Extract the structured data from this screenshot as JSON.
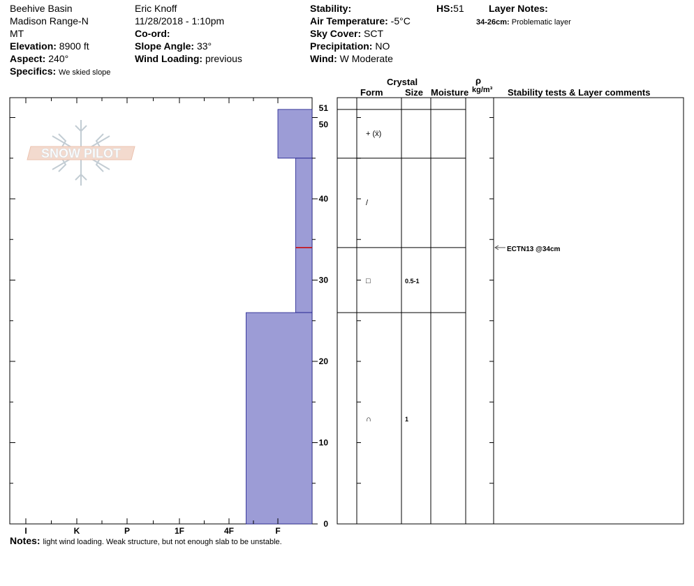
{
  "header": {
    "col1": {
      "location": "Beehive Basin",
      "range": "Madison Range-N",
      "state": "MT",
      "elevation_label": "Elevation:",
      "elevation_value": "8900 ft",
      "aspect_label": "Aspect:",
      "aspect_value": "240°",
      "specifics_label": "Specifics:",
      "specifics_value": "We skied slope"
    },
    "col2": {
      "observer": "Eric Knoff",
      "datetime": "11/28/2018 - 1:10pm",
      "coord_label": "Co-ord:",
      "slope_label": "Slope Angle:",
      "slope_value": "33°",
      "wind_loading_label": "Wind Loading:",
      "wind_loading_value": "previous"
    },
    "col3": {
      "stability_label": "Stability:",
      "air_temp_label": "Air Temperature:",
      "air_temp_value": "-5°C",
      "sky_label": "Sky Cover:",
      "sky_value": "SCT",
      "precip_label": "Precipitation:",
      "precip_value": "NO",
      "wind_label": "Wind:",
      "wind_value": "W Moderate"
    },
    "hs_label": "HS:",
    "hs_value": "51",
    "layer_notes_label": "Layer Notes:",
    "layer_note_range": "34-26cm:",
    "layer_note_text": "Problematic layer"
  },
  "logo": {
    "text": "SNOW PILOT"
  },
  "table_headers": {
    "crystal": "Crystal",
    "form": "Form",
    "size": "Size",
    "moisture": "Moisture",
    "rho": "ρ",
    "density_unit": "kg/m³",
    "stability": "Stability tests & Layer comments"
  },
  "notes": {
    "label": "Notes:",
    "text": "light wind loading. Weak structure, but not enough slab to be unstable."
  },
  "stability_test": {
    "text": "ECTN13 @34cm",
    "depth": 34
  },
  "colors": {
    "layer_fill": "#9c9cd6",
    "layer_stroke": "#1a1a8a",
    "marker": "#cc0000"
  },
  "chart_data": {
    "type": "bar",
    "ylabel": "",
    "xlabel": "",
    "ylim": [
      0,
      51
    ],
    "hardness_categories": [
      "I",
      "K",
      "P",
      "1F",
      "4F",
      "F"
    ],
    "height_ticks": [
      0,
      10,
      20,
      30,
      40,
      50,
      51
    ],
    "layers": [
      {
        "top": 51,
        "bottom": 45,
        "hardness": "F",
        "hardness_index": 5.0,
        "form": "+ (ẍ)",
        "size": ""
      },
      {
        "top": 45,
        "bottom": 34,
        "hardness": "F+",
        "hardness_index": 5.35,
        "form": "/",
        "size": ""
      },
      {
        "top": 34,
        "bottom": 26,
        "hardness": "F+",
        "hardness_index": 5.35,
        "form": "□",
        "size": "0.5-1"
      },
      {
        "top": 26,
        "bottom": 0,
        "hardness": "4F-",
        "hardness_index": 4.35,
        "form": "∩",
        "size": "1"
      }
    ]
  }
}
